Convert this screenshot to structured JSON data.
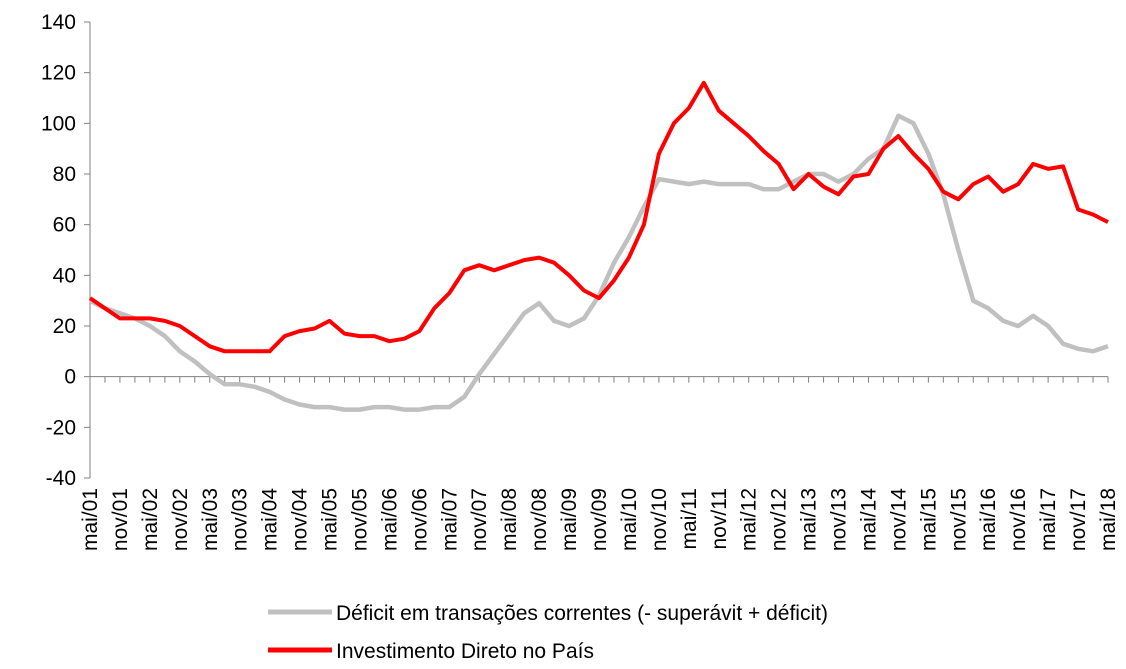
{
  "chart_data": {
    "type": "line",
    "categories": [
      "mai/01",
      null,
      "nov/01",
      null,
      "mai/02",
      null,
      "nov/02",
      null,
      "mai/03",
      null,
      "nov/03",
      null,
      "mai/04",
      null,
      "nov/04",
      null,
      "mai/05",
      null,
      "nov/05",
      null,
      "mai/06",
      null,
      "nov/06",
      null,
      "mai/07",
      null,
      "nov/07",
      null,
      "mai/08",
      null,
      "nov/08",
      null,
      "mai/09",
      null,
      "nov/09",
      null,
      "mai/10",
      null,
      "nov/10",
      null,
      "mai/11",
      null,
      "nov/11",
      null,
      "mai/12",
      null,
      "nov/12",
      null,
      "mai/13",
      null,
      "nov/13",
      null,
      "mai/14",
      null,
      "nov/14",
      null,
      "mai/15",
      null,
      "nov/15",
      null,
      "mai/16",
      null,
      "nov/16",
      null,
      "mai/17",
      null,
      "nov/17",
      null,
      "mai/18"
    ],
    "series": [
      {
        "name": "Déficit em transações correntes (- superávit + déficit)",
        "color": "#c0c0c0",
        "values": [
          30,
          27,
          25,
          23,
          20,
          16,
          10,
          6,
          1,
          -3,
          -3,
          -4,
          -6,
          -9,
          -11,
          -12,
          -12,
          -13,
          -13,
          -12,
          -12,
          -13,
          -13,
          -12,
          -12,
          -8,
          1,
          9,
          17,
          25,
          29,
          22,
          20,
          23,
          32,
          45,
          55,
          67,
          78,
          77,
          76,
          77,
          76,
          76,
          76,
          74,
          74,
          77,
          80,
          80,
          77,
          80,
          86,
          90,
          103,
          100,
          88,
          72,
          50,
          30,
          27,
          22,
          20,
          24,
          20,
          13,
          11,
          10,
          12
        ]
      },
      {
        "name": "Investimento Direto no País",
        "color": "#ff0000",
        "values": [
          31,
          27,
          23,
          23,
          23,
          22,
          20,
          16,
          12,
          10,
          10,
          10,
          10,
          16,
          18,
          19,
          22,
          17,
          16,
          16,
          14,
          15,
          18,
          27,
          33,
          42,
          44,
          42,
          44,
          46,
          47,
          45,
          40,
          34,
          31,
          38,
          47,
          60,
          88,
          100,
          106,
          116,
          105,
          100,
          95,
          89,
          84,
          74,
          80,
          75,
          72,
          79,
          80,
          90,
          95,
          88,
          82,
          73,
          70,
          76,
          79,
          73,
          76,
          84,
          82,
          83,
          66,
          64,
          61
        ]
      }
    ],
    "ylim": [
      -40,
      140
    ],
    "yticks": [
      -40,
      -20,
      0,
      20,
      40,
      60,
      80,
      100,
      120,
      140
    ]
  }
}
